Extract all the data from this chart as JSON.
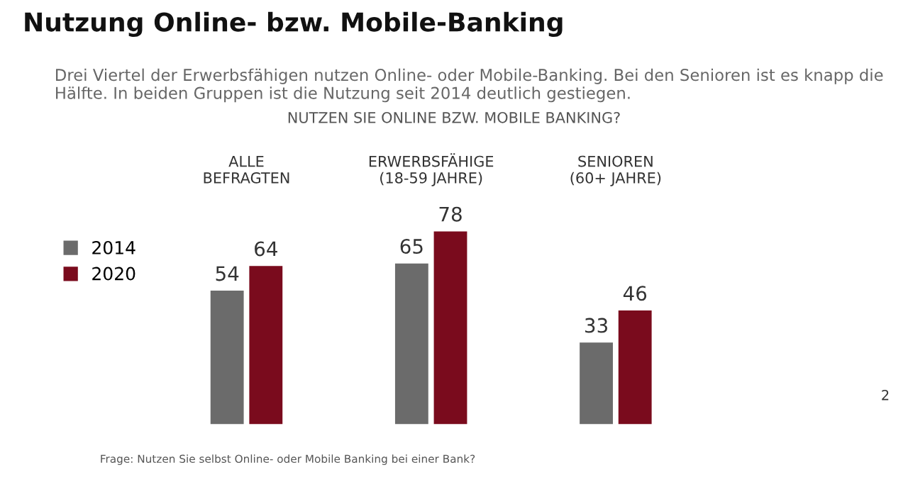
{
  "chart_data": {
    "type": "bar",
    "title": "Nutzung Online- bzw. Mobile-Banking",
    "subtitle": "Drei Viertel der Erwerbsfähigen nutzen Online- oder Mobile-Banking. Bei den Senioren ist es knapp die Hälfte. In beiden Gruppen ist die Nutzung seit 2014 deutlich gestiegen.",
    "categories": [
      "ALLE\nBEFRAGTEN",
      "ERWERBSFÄHIGE\n(18-59 JAHRE)",
      "SENIOREN\n(60+ JAHRE)"
    ],
    "series": [
      {
        "name": "2014",
        "color": "#6b6b6b",
        "values": [
          54,
          65,
          33
        ]
      },
      {
        "name": "2020",
        "color": "#7a0b1d",
        "values": [
          64,
          78,
          46
        ]
      }
    ],
    "data_labels": true,
    "legend": "left",
    "annotations": [
      "NUTZEN SIE ONLINE BZW. MOBILE BANKING?",
      "Frage: Nutzen Sie selbst Online- oder Mobile Banking bei einer Bank?",
      "2"
    ]
  }
}
